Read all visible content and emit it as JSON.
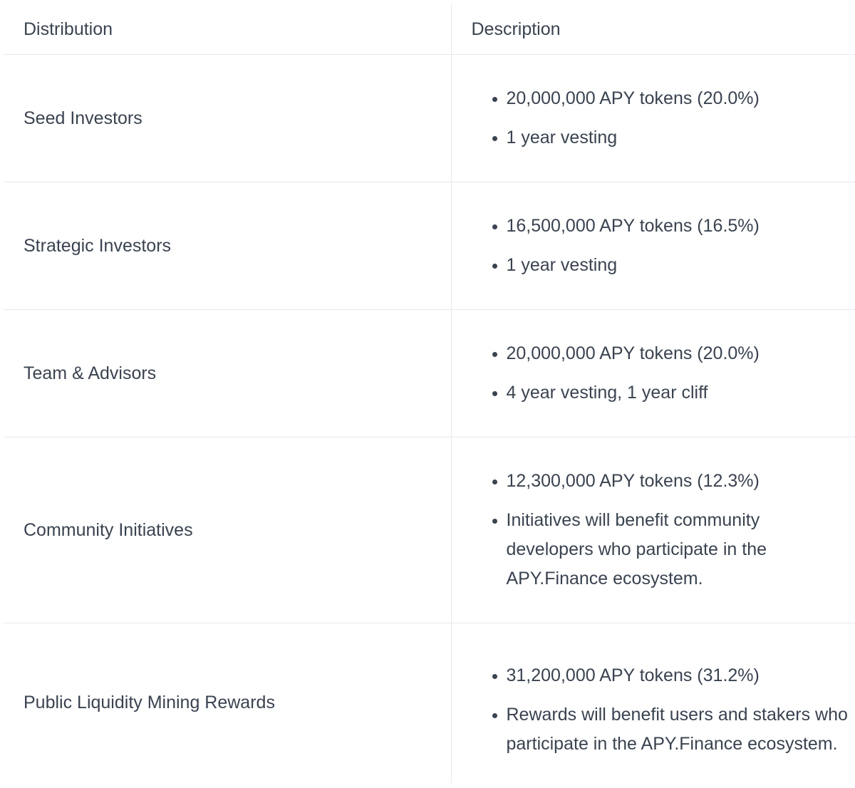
{
  "table": {
    "headers": [
      "Distribution",
      "Description"
    ],
    "rows": [
      {
        "distribution": "Seed Investors",
        "description": [
          "20,000,000 APY tokens (20.0%)",
          "1 year vesting"
        ]
      },
      {
        "distribution": "Strategic Investors",
        "description": [
          "16,500,000 APY tokens (16.5%)",
          "1 year vesting"
        ]
      },
      {
        "distribution": "Team & Advisors",
        "description": [
          "20,000,000 APY tokens (20.0%)",
          "4 year vesting, 1 year cliff"
        ]
      },
      {
        "distribution": "Community Initiatives",
        "description": [
          "12,300,000 APY tokens (12.3%)",
          "Initiatives will benefit community developers who participate in the APY.Finance ecosystem."
        ]
      },
      {
        "distribution": "Public Liquidity Mining Rewards",
        "description": [
          "31,200,000 APY tokens (31.2%)",
          "Rewards will benefit users and stakers who participate in the APY.Finance ecosystem."
        ]
      }
    ]
  }
}
